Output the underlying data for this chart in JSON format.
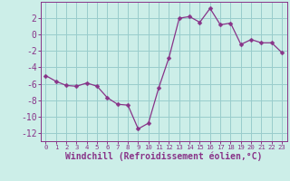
{
  "x": [
    0,
    1,
    2,
    3,
    4,
    5,
    6,
    7,
    8,
    9,
    10,
    11,
    12,
    13,
    14,
    15,
    16,
    17,
    18,
    19,
    20,
    21,
    22,
    23
  ],
  "y": [
    -5.0,
    -5.7,
    -6.2,
    -6.3,
    -5.9,
    -6.3,
    -7.7,
    -8.5,
    -8.6,
    -11.5,
    -10.8,
    -6.5,
    -2.8,
    2.0,
    2.2,
    1.5,
    3.2,
    1.2,
    1.4,
    -1.2,
    -0.6,
    -1.0,
    -1.0,
    -2.2
  ],
  "line_color": "#883388",
  "marker": "D",
  "marker_size": 2.5,
  "bg_color": "#cceee8",
  "grid_color": "#99cccc",
  "xlabel": "Windchill (Refroidissement éolien,°C)",
  "xlim": [
    -0.5,
    23.5
  ],
  "ylim": [
    -13,
    4
  ],
  "yticks": [
    -12,
    -10,
    -8,
    -6,
    -4,
    -2,
    0,
    2
  ],
  "xticks": [
    0,
    1,
    2,
    3,
    4,
    5,
    6,
    7,
    8,
    9,
    10,
    11,
    12,
    13,
    14,
    15,
    16,
    17,
    18,
    19,
    20,
    21,
    22,
    23
  ],
  "tick_color": "#883388",
  "xlabel_fontsize": 7.0,
  "ytick_fontsize": 7.0,
  "xtick_fontsize": 5.2
}
